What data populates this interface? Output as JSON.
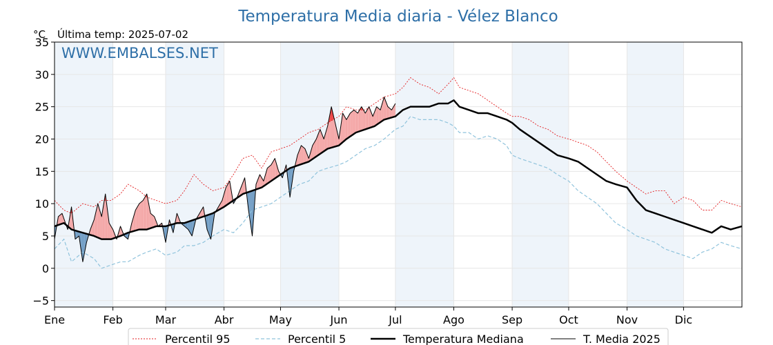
{
  "title": "Temperatura Media diaria - Vélez Blanco",
  "unit_label": "°C",
  "last_temp": "Última temp: 2025-07-02",
  "watermark": "WWW.EMBALSES.NET",
  "colors": {
    "title": "#2e6fa7",
    "p95": "#e31a1c",
    "p5": "#8fc3dc",
    "median": "#000000",
    "current": "#000000",
    "above_fill": "#f4a6a6",
    "below_fill": "#6f9cc4",
    "extreme_fill": "#ee4444",
    "band": "#eef4fa"
  },
  "legend": [
    {
      "key": "p95",
      "label": "Percentil 95"
    },
    {
      "key": "p5",
      "label": "Percentil 5"
    },
    {
      "key": "median",
      "label": "Temperatura Mediana"
    },
    {
      "key": "current",
      "label": "T. Media 2025"
    }
  ],
  "chart_data": {
    "type": "line",
    "title": "Temperatura Media diaria - Vélez Blanco",
    "ylabel": "°C",
    "ylim": [
      -6,
      35
    ],
    "xlim": [
      1,
      366
    ],
    "yticks": [
      -5,
      0,
      5,
      10,
      15,
      20,
      25,
      30,
      35
    ],
    "x_ticks": [
      {
        "label": "Ene",
        "day": 1
      },
      {
        "label": "Feb",
        "day": 32
      },
      {
        "label": "Mar",
        "day": 60
      },
      {
        "label": "Abr",
        "day": 91
      },
      {
        "label": "May",
        "day": 121
      },
      {
        "label": "Jun",
        "day": 152
      },
      {
        "label": "Jul",
        "day": 182
      },
      {
        "label": "Ago",
        "day": 213
      },
      {
        "label": "Sep",
        "day": 244
      },
      {
        "label": "Oct",
        "day": 274
      },
      {
        "label": "Nov",
        "day": 305
      },
      {
        "label": "Dic",
        "day": 335
      }
    ],
    "shaded_months": [
      "Ene",
      "Mar",
      "May",
      "Jul",
      "Sep",
      "Nov"
    ],
    "grid": true,
    "legend_position": "bottom",
    "series": [
      {
        "key": "p95",
        "name": "Percentil 95",
        "style": "dotted",
        "x": [
          1,
          6,
          10,
          16,
          22,
          26,
          31,
          36,
          40,
          46,
          50,
          55,
          60,
          66,
          70,
          75,
          80,
          85,
          91,
          96,
          101,
          106,
          111,
          116,
          121,
          126,
          131,
          136,
          141,
          146,
          152,
          156,
          161,
          166,
          171,
          176,
          182,
          186,
          190,
          195,
          200,
          205,
          210,
          213,
          216,
          221,
          226,
          231,
          236,
          241,
          244,
          248,
          253,
          258,
          263,
          268,
          274,
          279,
          284,
          289,
          294,
          299,
          305,
          310,
          315,
          320,
          325,
          330,
          335,
          340,
          345,
          350,
          355,
          360,
          366
        ],
        "y": [
          10.5,
          9,
          8.5,
          10,
          9.5,
          10.5,
          10.5,
          11.5,
          13,
          12,
          11,
          10.5,
          10,
          10.5,
          12,
          14.5,
          13,
          12,
          12.5,
          14.5,
          17,
          17.5,
          15.5,
          18,
          18.5,
          19,
          20,
          21,
          21.5,
          22.5,
          23.5,
          25,
          24.5,
          24.5,
          25.5,
          26.5,
          27,
          28,
          29.5,
          28.5,
          28,
          27,
          28.5,
          29.5,
          28,
          27.5,
          27,
          26,
          25,
          24,
          23.5,
          23.5,
          23,
          22,
          21.5,
          20.5,
          20,
          19.5,
          19,
          18,
          16.5,
          15,
          13.5,
          12.5,
          11.5,
          12,
          12,
          10,
          11,
          10.5,
          9,
          9,
          10.5,
          10,
          9.5
        ]
      },
      {
        "key": "p5",
        "name": "Percentil 5",
        "style": "dashed",
        "x": [
          1,
          6,
          10,
          16,
          22,
          26,
          31,
          36,
          40,
          46,
          50,
          55,
          60,
          66,
          70,
          75,
          80,
          85,
          91,
          96,
          101,
          106,
          111,
          116,
          121,
          126,
          131,
          136,
          141,
          146,
          152,
          156,
          161,
          166,
          171,
          176,
          182,
          186,
          190,
          195,
          200,
          205,
          210,
          213,
          216,
          221,
          226,
          231,
          236,
          241,
          244,
          248,
          253,
          258,
          263,
          268,
          274,
          279,
          284,
          289,
          294,
          299,
          305,
          310,
          315,
          320,
          325,
          330,
          335,
          340,
          345,
          350,
          355,
          360,
          366
        ],
        "y": [
          3,
          4.5,
          1,
          2.5,
          1.5,
          0,
          0.5,
          1,
          1,
          2,
          2.5,
          3,
          2,
          2.5,
          3.5,
          3.5,
          4,
          5,
          6,
          5.5,
          7,
          9,
          9.5,
          10,
          11,
          12,
          13,
          13.5,
          15,
          15.5,
          16,
          16.5,
          17.5,
          18.5,
          19,
          20,
          21.5,
          22,
          23.5,
          23,
          23,
          23,
          22.5,
          22,
          21,
          21,
          20,
          20.5,
          20,
          19,
          17.5,
          17,
          16.5,
          16,
          15.5,
          14.5,
          13.5,
          12,
          11,
          10,
          8.5,
          7,
          6,
          5,
          4.5,
          4,
          3,
          2.5,
          2,
          1.5,
          2.5,
          3,
          4,
          3.5,
          3
        ]
      },
      {
        "key": "median",
        "name": "Temperatura Mediana",
        "style": "solid-thick",
        "x": [
          1,
          6,
          10,
          16,
          22,
          26,
          31,
          36,
          40,
          46,
          50,
          55,
          60,
          66,
          70,
          75,
          80,
          85,
          91,
          96,
          101,
          106,
          111,
          116,
          121,
          126,
          131,
          136,
          141,
          146,
          152,
          156,
          161,
          166,
          171,
          176,
          182,
          186,
          190,
          195,
          200,
          205,
          210,
          213,
          216,
          221,
          226,
          231,
          236,
          241,
          244,
          248,
          253,
          258,
          263,
          268,
          274,
          279,
          284,
          289,
          294,
          299,
          305,
          310,
          315,
          320,
          325,
          330,
          335,
          340,
          345,
          350,
          355,
          360,
          366
        ],
        "y": [
          6.5,
          7,
          6,
          5.5,
          5,
          4.5,
          4.5,
          5,
          5.5,
          6,
          6,
          6.5,
          6.5,
          7,
          7,
          7.5,
          8,
          8.5,
          9.5,
          10.5,
          11.5,
          12,
          12.5,
          13.5,
          14.5,
          15.5,
          16,
          16.5,
          17.5,
          18.5,
          19,
          20,
          21,
          21.5,
          22,
          23,
          23.5,
          24.5,
          25,
          25,
          25,
          25.5,
          25.5,
          26,
          25,
          24.5,
          24,
          24,
          23.5,
          23,
          22.5,
          21.5,
          20.5,
          19.5,
          18.5,
          17.5,
          17,
          16.5,
          15.5,
          14.5,
          13.5,
          13,
          12.5,
          10.5,
          9,
          8.5,
          8,
          7.5,
          7,
          6.5,
          6,
          5.5,
          6.5,
          6,
          6.5
        ]
      },
      {
        "key": "current",
        "name": "T. Media 2025",
        "style": "solid-thin",
        "x": [
          1,
          3,
          5,
          8,
          10,
          12,
          14,
          16,
          18,
          20,
          22,
          24,
          26,
          28,
          30,
          32,
          34,
          36,
          38,
          40,
          42,
          44,
          46,
          48,
          50,
          52,
          54,
          56,
          58,
          60,
          62,
          64,
          66,
          68,
          70,
          72,
          74,
          76,
          78,
          80,
          82,
          84,
          86,
          88,
          90,
          92,
          94,
          96,
          98,
          100,
          102,
          104,
          106,
          108,
          110,
          112,
          114,
          116,
          118,
          120,
          122,
          124,
          126,
          128,
          130,
          132,
          134,
          136,
          138,
          140,
          142,
          144,
          146,
          148,
          150,
          152,
          154,
          156,
          158,
          160,
          162,
          164,
          166,
          168,
          170,
          172,
          174,
          176,
          178,
          180,
          182
        ],
        "y": [
          4.5,
          8,
          8.5,
          6,
          9.5,
          4.5,
          5,
          1,
          4,
          6,
          7.5,
          10,
          8,
          11.5,
          7,
          6,
          4.5,
          6.5,
          5,
          4.5,
          7,
          9,
          10,
          10.5,
          11.5,
          8.5,
          8,
          6.5,
          7,
          4,
          7.5,
          5.5,
          8.5,
          7,
          6.5,
          6,
          5,
          7.5,
          8.5,
          9.5,
          6,
          4.5,
          8.5,
          9.5,
          10.5,
          12.5,
          13.5,
          10,
          11,
          12.5,
          14,
          9,
          5,
          13,
          14.5,
          13.5,
          15.5,
          16,
          17,
          15,
          14,
          16,
          11,
          15,
          17.5,
          19,
          18.5,
          17,
          19,
          20,
          21.5,
          20,
          22,
          25,
          22.5,
          20,
          24,
          23,
          24,
          24.5,
          24,
          25,
          24,
          25,
          23.5,
          25,
          24.5,
          26.5,
          25,
          24.5,
          25.5
        ]
      }
    ]
  }
}
